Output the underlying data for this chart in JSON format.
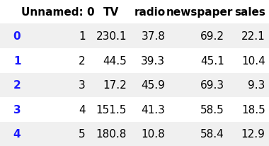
{
  "columns": [
    "Unnamed: 0",
    "TV",
    "radio",
    "newspaper",
    "sales"
  ],
  "index": [
    "0",
    "1",
    "2",
    "3",
    "4"
  ],
  "rows": [
    [
      1,
      230.1,
      37.8,
      69.2,
      22.1
    ],
    [
      2,
      44.5,
      39.3,
      45.1,
      10.4
    ],
    [
      3,
      17.2,
      45.9,
      69.3,
      9.3
    ],
    [
      4,
      151.5,
      41.3,
      58.5,
      18.5
    ],
    [
      5,
      180.8,
      10.8,
      58.4,
      12.9
    ]
  ],
  "header_bg": "#ffffff",
  "row_bg_even": "#f0f0f0",
  "row_bg_odd": "#ffffff",
  "index_color": "#1a1aff",
  "header_color": "#000000",
  "cell_color": "#000000",
  "header_fontsize": 11,
  "cell_fontsize": 11,
  "index_fontsize": 11
}
